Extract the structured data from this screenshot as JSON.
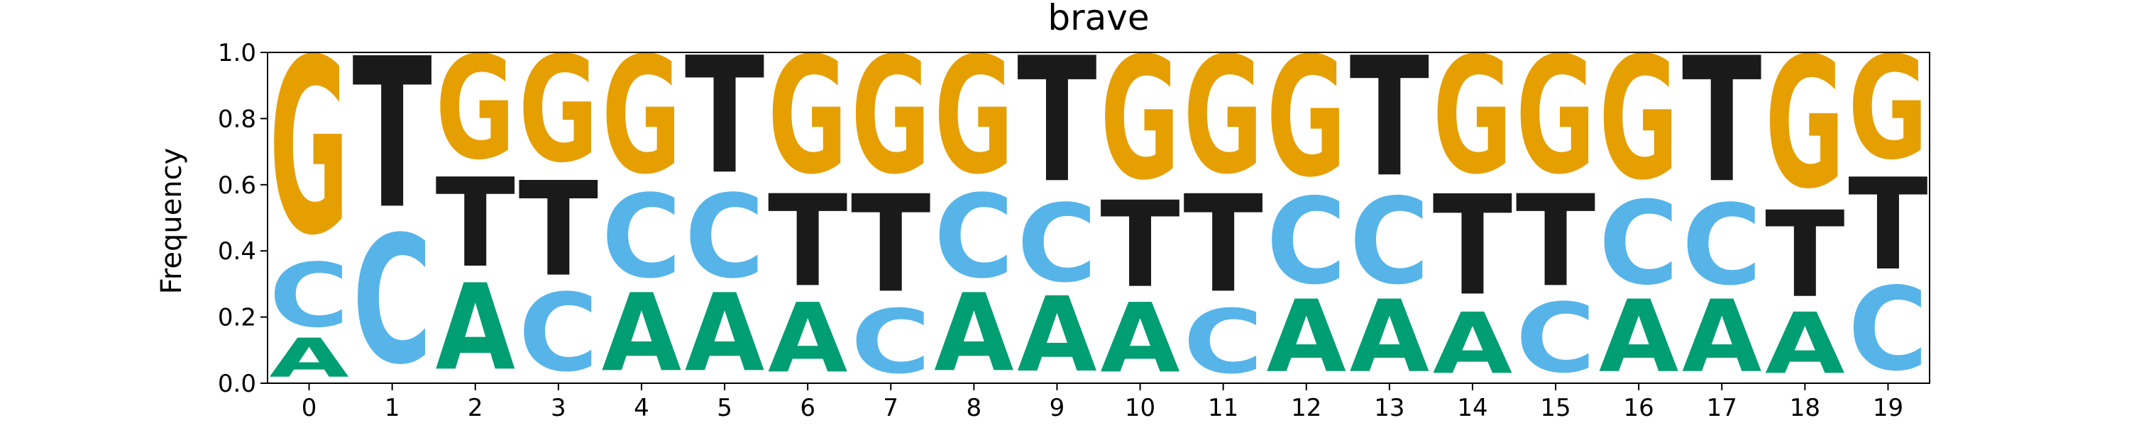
{
  "chart_data": {
    "type": "sequence-logo",
    "title": "brave",
    "ylabel": "Frequency",
    "xlabel": "",
    "ylim": [
      0,
      1.0
    ],
    "yticks": [
      "0.0",
      "0.2",
      "0.4",
      "0.6",
      "0.8",
      "1.0"
    ],
    "positions": [
      "0",
      "1",
      "2",
      "3",
      "4",
      "5",
      "6",
      "7",
      "8",
      "9",
      "10",
      "11",
      "12",
      "13",
      "14",
      "15",
      "16",
      "17",
      "18",
      "19"
    ],
    "letter_colors": {
      "A": "#009e73",
      "C": "#56b4e9",
      "G": "#e69f00",
      "T": "#1a1a1a"
    },
    "columns": [
      {
        "position": "0",
        "freqs": {
          "A": 0.14,
          "C": 0.23,
          "G": 0.63
        }
      },
      {
        "position": "1",
        "freqs": {
          "C": 0.46,
          "T": 0.54
        }
      },
      {
        "position": "2",
        "freqs": {
          "A": 0.31,
          "T": 0.32,
          "G": 0.37
        }
      },
      {
        "position": "3",
        "freqs": {
          "C": 0.28,
          "T": 0.34,
          "G": 0.38
        }
      },
      {
        "position": "4",
        "freqs": {
          "A": 0.28,
          "C": 0.3,
          "G": 0.42
        }
      },
      {
        "position": "5",
        "freqs": {
          "A": 0.28,
          "C": 0.3,
          "T": 0.42
        }
      },
      {
        "position": "6",
        "freqs": {
          "A": 0.25,
          "T": 0.33,
          "G": 0.42
        }
      },
      {
        "position": "7",
        "freqs": {
          "C": 0.23,
          "T": 0.35,
          "G": 0.42
        }
      },
      {
        "position": "8",
        "freqs": {
          "A": 0.28,
          "C": 0.3,
          "G": 0.42
        }
      },
      {
        "position": "9",
        "freqs": {
          "A": 0.27,
          "C": 0.28,
          "T": 0.45
        }
      },
      {
        "position": "10",
        "freqs": {
          "A": 0.25,
          "T": 0.31,
          "G": 0.44
        }
      },
      {
        "position": "11",
        "freqs": {
          "C": 0.23,
          "T": 0.35,
          "G": 0.42
        }
      },
      {
        "position": "12",
        "freqs": {
          "A": 0.26,
          "C": 0.31,
          "G": 0.43
        }
      },
      {
        "position": "13",
        "freqs": {
          "A": 0.26,
          "C": 0.31,
          "T": 0.43
        }
      },
      {
        "position": "14",
        "freqs": {
          "A": 0.22,
          "T": 0.36,
          "G": 0.42
        }
      },
      {
        "position": "15",
        "freqs": {
          "C": 0.25,
          "T": 0.33,
          "G": 0.42
        }
      },
      {
        "position": "16",
        "freqs": {
          "A": 0.26,
          "C": 0.3,
          "G": 0.44
        }
      },
      {
        "position": "17",
        "freqs": {
          "A": 0.26,
          "C": 0.29,
          "T": 0.45
        }
      },
      {
        "position": "18",
        "freqs": {
          "A": 0.22,
          "T": 0.31,
          "G": 0.47
        }
      },
      {
        "position": "19",
        "freqs": {
          "C": 0.3,
          "T": 0.33,
          "G": 0.37
        }
      }
    ]
  }
}
